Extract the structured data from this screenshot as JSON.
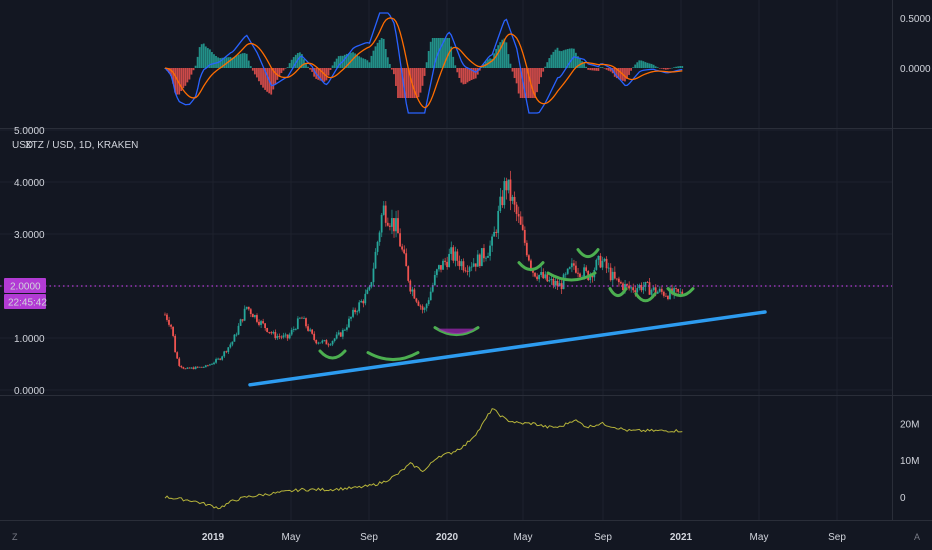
{
  "chart_data": {
    "type": "line",
    "symbol": "XTZ / USD, 1D, KRAKEN",
    "currency": "USD",
    "price": {
      "ylim": [
        0,
        5
      ],
      "y_ticks": [
        "0.0000",
        "1.0000",
        "2.0000",
        "3.0000",
        "4.0000",
        "5.0000"
      ],
      "last_price_label": "2.0000",
      "countdown_label": "22:45:42",
      "colors": {
        "up": "#26a69a",
        "down": "#ef5350",
        "price_line": "#b23bd4",
        "trendline": "#2d9cf0",
        "arc_green": "#4caf50",
        "arc_purple": "#9c27b0"
      },
      "x": [
        0,
        5,
        10,
        15,
        20,
        30,
        40,
        60,
        80,
        100,
        120,
        140,
        160,
        180,
        200,
        220,
        240,
        260,
        280,
        300,
        320,
        340,
        360,
        380,
        400,
        420,
        440,
        460,
        480,
        500,
        520,
        540,
        560,
        580,
        600,
        620,
        640,
        660,
        680,
        700,
        720,
        740,
        760
      ],
      "close": [
        1.45,
        1.35,
        1.2,
        0.75,
        0.5,
        0.4,
        0.42,
        0.45,
        0.6,
        0.95,
        1.6,
        1.3,
        1.05,
        1.0,
        1.4,
        0.95,
        0.9,
        1.1,
        1.55,
        1.9,
        3.5,
        3.1,
        2.0,
        1.5,
        2.3,
        2.6,
        2.4,
        2.5,
        2.8,
        4.0,
        3.2,
        2.3,
        2.1,
        2.0,
        2.4,
        2.2,
        2.5,
        2.1,
        1.95,
        2.0,
        1.9,
        1.85,
        1.85
      ]
    },
    "trendline": {
      "start": {
        "x": "2019-02",
        "y": 0.1
      },
      "end": {
        "x": "2021-05",
        "y": 1.5
      }
    },
    "macd": {
      "y_ticks": [
        "0.5000",
        "0.0000"
      ],
      "ylim": [
        -0.5,
        0.6
      ],
      "line_color": "#2962ff",
      "signal_color": "#ff6d00",
      "hist_up_color": "#26a69a",
      "hist_down_color": "#ef5350"
    },
    "volume_indicator": {
      "y_ticks": [
        "20M",
        "10M",
        "0"
      ],
      "ylim": [
        -3,
        25
      ],
      "line_color": "#b5b33a",
      "x": [
        0,
        40,
        80,
        100,
        120,
        160,
        200,
        240,
        280,
        300,
        320,
        340,
        360,
        380,
        400,
        420,
        440,
        460,
        480,
        500,
        520,
        540,
        560,
        580,
        600,
        620,
        640,
        660,
        680,
        700,
        720,
        740,
        760
      ],
      "values": [
        0,
        -1,
        -3,
        -1,
        0,
        1,
        2,
        2,
        2.5,
        3,
        4,
        6,
        9,
        7,
        11,
        12,
        14,
        18,
        24,
        21,
        20,
        20,
        19,
        19,
        21,
        19,
        20,
        19,
        18,
        18,
        18,
        18,
        18
      ]
    },
    "x_axis": {
      "labels": [
        "2019",
        "May",
        "Sep",
        "2020",
        "May",
        "Sep",
        "2021",
        "May",
        "Sep"
      ],
      "bold": [
        "2019",
        "2020",
        "2021"
      ]
    }
  },
  "corners": {
    "left": "Z",
    "right": "A"
  }
}
